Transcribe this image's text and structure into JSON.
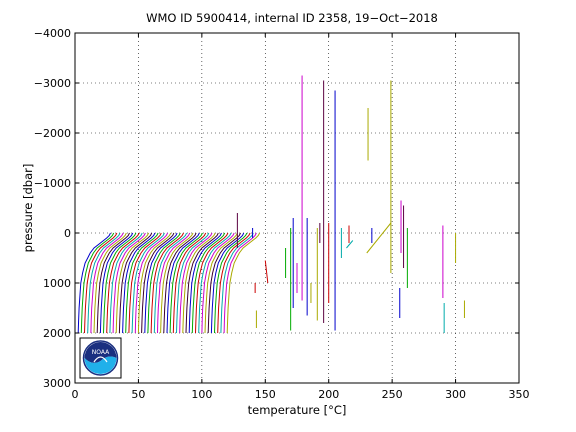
{
  "chart_data": {
    "type": "line",
    "title": "WMO ID 5900414, internal ID 2358, 19−Oct−2018",
    "xlabel": "temperature [°C]",
    "ylabel": "pressure [dbar]",
    "xlim": [
      0,
      350
    ],
    "ylim": [
      3000,
      -4000
    ],
    "y_reversed": true,
    "grid": true,
    "xticks": [
      "0",
      "50",
      "100",
      "150",
      "200",
      "250",
      "300",
      "350"
    ],
    "yticks": [
      "−4000",
      "−3000",
      "−2000",
      "−1000",
      "0",
      "1000",
      "2000",
      "3000"
    ],
    "profile_offset_series": {
      "count": 48,
      "offset_step_degC": 2.5,
      "pressure_dbar": [
        0,
        50,
        100,
        200,
        300,
        400,
        500,
        600,
        800,
        1000,
        1200,
        1500,
        1750,
        2000
      ],
      "base_temperature_degC": [
        28,
        27,
        25,
        20,
        15,
        12,
        10,
        8,
        6,
        4.6,
        4.0,
        3.2,
        2.8,
        2.5
      ]
    },
    "outlier_segments": [
      {
        "x": 128,
        "p": [
          -400,
          300
        ],
        "color": "#5a0040"
      },
      {
        "x": 140,
        "p": [
          -100,
          100
        ],
        "color": "#0000cc"
      },
      {
        "x": 142,
        "p": [
          1000,
          1200
        ],
        "color": "#cc0000"
      },
      {
        "x": 143,
        "p": [
          1550,
          1900
        ],
        "color": "#aaaa00"
      },
      {
        "x": 166,
        "p": [
          300,
          900
        ],
        "color": "#00aa00"
      },
      {
        "x": 170,
        "p": [
          -100,
          1950
        ],
        "color": "#00aa00"
      },
      {
        "x": 172,
        "p": [
          -300,
          1500
        ],
        "color": "#0000cc"
      },
      {
        "x": 175,
        "p": [
          600,
          1200
        ],
        "color": "#cc00cc"
      },
      {
        "x": 179,
        "p": [
          -3150,
          1350
        ],
        "color": "#cc00cc"
      },
      {
        "x": 183,
        "p": [
          -300,
          1650
        ],
        "color": "#0000cc"
      },
      {
        "x": 186,
        "p": [
          1000,
          1400
        ],
        "color": "#aaaa00"
      },
      {
        "x": 191,
        "p": [
          -100,
          1750
        ],
        "color": "#aaaa00"
      },
      {
        "x": 193,
        "p": [
          -200,
          200
        ],
        "color": "#5a0040"
      },
      {
        "x": 196,
        "p": [
          -3050,
          1800
        ],
        "color": "#5a0040"
      },
      {
        "x": 200,
        "p": [
          -200,
          1400
        ],
        "color": "#cc0000"
      },
      {
        "x": 205,
        "p": [
          -2850,
          1950
        ],
        "color": "#0000cc"
      },
      {
        "x": 210,
        "p": [
          -100,
          500
        ],
        "color": "#00aaaa"
      },
      {
        "x": 216,
        "p": [
          -150,
          200
        ],
        "color": "#cc0000"
      },
      {
        "x": 231,
        "p": [
          -2500,
          -1450
        ],
        "color": "#aaaa00"
      },
      {
        "x": 234,
        "p": [
          -100,
          200
        ],
        "color": "#0000cc"
      },
      {
        "x": 249,
        "p": [
          -3050,
          800
        ],
        "color": "#aaaa00"
      },
      {
        "x": 257,
        "p": [
          -650,
          400
        ],
        "color": "#cc00cc"
      },
      {
        "x": 259,
        "p": [
          -550,
          700
        ],
        "color": "#5a0040"
      },
      {
        "x": 256,
        "p": [
          1100,
          1700
        ],
        "color": "#0000cc"
      },
      {
        "x": 262,
        "p": [
          -100,
          1100
        ],
        "color": "#00aa00"
      },
      {
        "x": 290,
        "p": [
          -150,
          1300
        ],
        "color": "#cc00cc"
      },
      {
        "x": 291,
        "p": [
          1400,
          2000
        ],
        "color": "#00aaaa"
      },
      {
        "x": 300,
        "p": [
          0,
          600
        ],
        "color": "#aaaa00"
      },
      {
        "x": 307,
        "p": [
          1350,
          1700
        ],
        "color": "#aaaa00"
      }
    ],
    "slanted_segments": [
      {
        "x": [
          230,
          249
        ],
        "p": [
          400,
          -200
        ],
        "color": "#aaaa00"
      },
      {
        "x": [
          214,
          219
        ],
        "p": [
          300,
          150
        ],
        "color": "#00aaaa"
      },
      {
        "x": [
          150,
          152
        ],
        "p": [
          550,
          1000
        ],
        "color": "#cc0000"
      }
    ]
  },
  "logo": {
    "text": "NOAA",
    "colors": {
      "outer": "#ffffff",
      "top": "#1a2f80",
      "bottom": "#20b0ea"
    }
  }
}
